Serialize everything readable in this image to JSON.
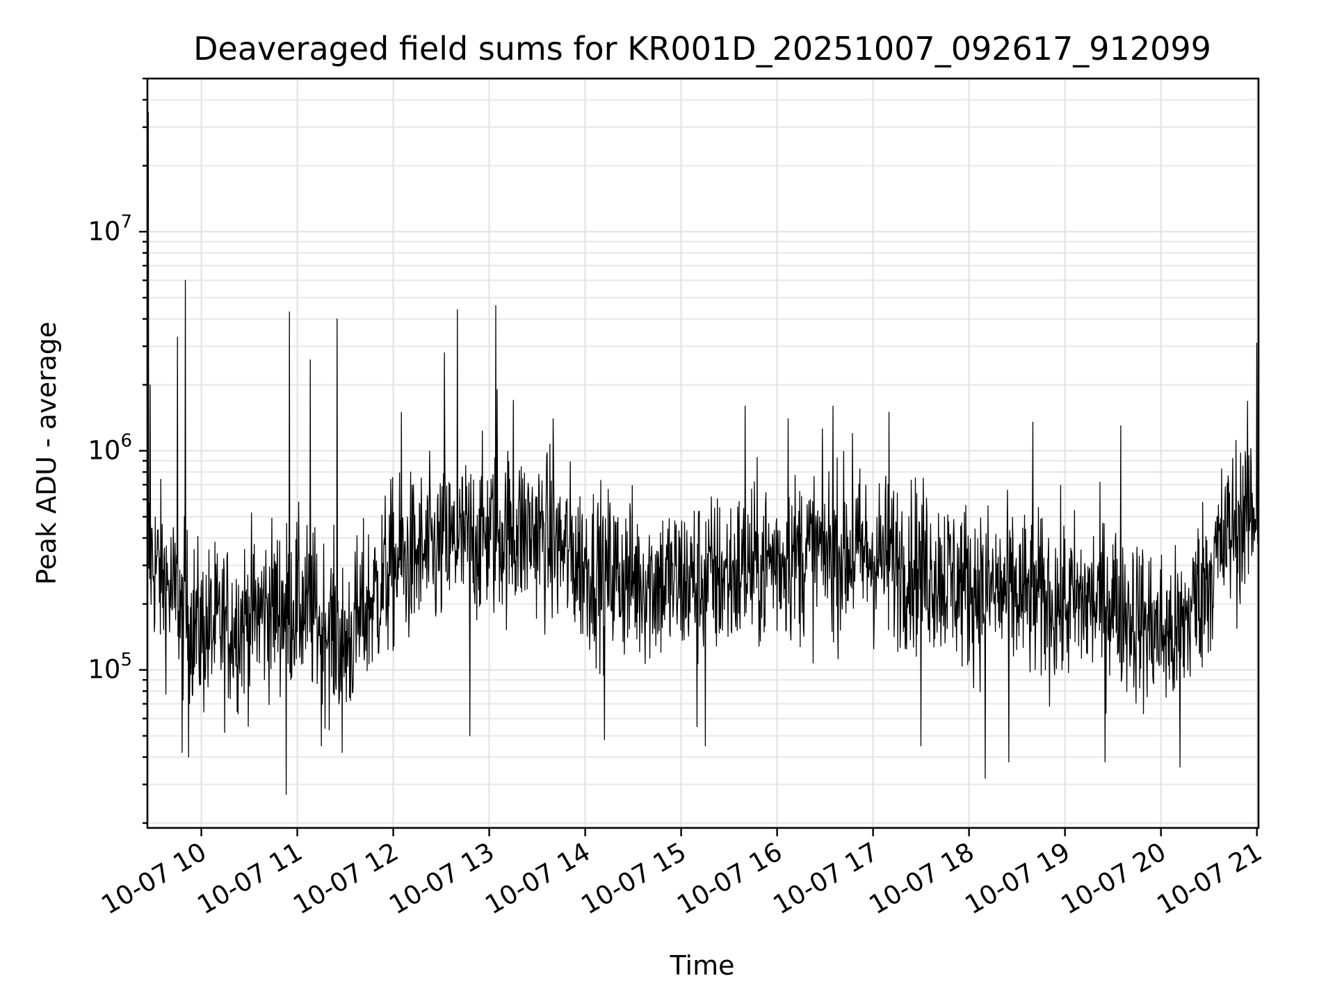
{
  "chart_data": {
    "type": "line",
    "title": "Deaveraged field sums for KR001D_20251007_092617_912099",
    "xlabel": "Time",
    "ylabel": "Peak ADU - average",
    "x_type": "datetime",
    "xlim": [
      "2025-10-07T09:26:17",
      "2025-10-07T21:01:00"
    ],
    "x_ticks": [
      {
        "value": "2025-10-07T10:00",
        "label": "10-07 10"
      },
      {
        "value": "2025-10-07T11:00",
        "label": "10-07 11"
      },
      {
        "value": "2025-10-07T12:00",
        "label": "10-07 12"
      },
      {
        "value": "2025-10-07T13:00",
        "label": "10-07 13"
      },
      {
        "value": "2025-10-07T14:00",
        "label": "10-07 14"
      },
      {
        "value": "2025-10-07T15:00",
        "label": "10-07 15"
      },
      {
        "value": "2025-10-07T16:00",
        "label": "10-07 16"
      },
      {
        "value": "2025-10-07T17:00",
        "label": "10-07 17"
      },
      {
        "value": "2025-10-07T18:00",
        "label": "10-07 18"
      },
      {
        "value": "2025-10-07T19:00",
        "label": "10-07 19"
      },
      {
        "value": "2025-10-07T20:00",
        "label": "10-07 20"
      },
      {
        "value": "2025-10-07T21:00",
        "label": "10-07 21"
      }
    ],
    "y_scale": "log",
    "ylim": [
      19000,
      50000000
    ],
    "y_ticks": [
      {
        "value": 100000,
        "base": "10",
        "exp": "5"
      },
      {
        "value": 1000000,
        "base": "10",
        "exp": "6"
      },
      {
        "value": 10000000,
        "base": "10",
        "exp": "7"
      }
    ],
    "grid": true,
    "legend": "none",
    "line_color": "#000000",
    "trend": [
      [
        "09:26",
        350000
      ],
      [
        "09:45",
        200000
      ],
      [
        "10:00",
        150000
      ],
      [
        "10:20",
        160000
      ],
      [
        "10:40",
        190000
      ],
      [
        "11:00",
        200000
      ],
      [
        "11:15",
        170000
      ],
      [
        "11:30",
        130000
      ],
      [
        "11:45",
        200000
      ],
      [
        "12:00",
        300000
      ],
      [
        "12:30",
        350000
      ],
      [
        "13:00",
        420000
      ],
      [
        "13:30",
        430000
      ],
      [
        "14:00",
        300000
      ],
      [
        "14:30",
        260000
      ],
      [
        "15:00",
        250000
      ],
      [
        "15:30",
        270000
      ],
      [
        "16:00",
        320000
      ],
      [
        "16:30",
        350000
      ],
      [
        "17:00",
        330000
      ],
      [
        "17:30",
        300000
      ],
      [
        "18:00",
        240000
      ],
      [
        "18:30",
        220000
      ],
      [
        "19:00",
        200000
      ],
      [
        "19:30",
        210000
      ],
      [
        "19:50",
        160000
      ],
      [
        "20:10",
        140000
      ],
      [
        "20:30",
        280000
      ],
      [
        "20:45",
        450000
      ],
      [
        "21:00",
        550000
      ]
    ],
    "spikes": [
      [
        "09:27",
        35000000
      ],
      [
        "09:28",
        2000000
      ],
      [
        "09:45",
        3300000
      ],
      [
        "09:48",
        42000
      ],
      [
        "09:50",
        6000000
      ],
      [
        "09:52",
        40000
      ],
      [
        "10:53",
        27000
      ],
      [
        "10:55",
        4300000
      ],
      [
        "11:08",
        2600000
      ],
      [
        "11:15",
        45000
      ],
      [
        "11:25",
        4000000
      ],
      [
        "11:28",
        42000
      ],
      [
        "12:05",
        1500000
      ],
      [
        "12:32",
        2800000
      ],
      [
        "12:40",
        4400000
      ],
      [
        "12:48",
        50000
      ],
      [
        "13:04",
        4600000
      ],
      [
        "13:05",
        3000000
      ],
      [
        "13:05",
        1900000
      ],
      [
        "13:15",
        1700000
      ],
      [
        "13:40",
        1400000
      ],
      [
        "14:12",
        48000
      ],
      [
        "15:10",
        55000
      ],
      [
        "15:15",
        45000
      ],
      [
        "15:40",
        1600000
      ],
      [
        "16:07",
        1400000
      ],
      [
        "16:35",
        1600000
      ],
      [
        "16:47",
        1200000
      ],
      [
        "17:10",
        1500000
      ],
      [
        "17:30",
        45000
      ],
      [
        "18:10",
        32000
      ],
      [
        "18:25",
        38000
      ],
      [
        "18:40",
        1350000
      ],
      [
        "19:25",
        38000
      ],
      [
        "19:35",
        1300000
      ],
      [
        "20:12",
        36000
      ],
      [
        "21:00",
        3100000
      ],
      [
        "20:55",
        950000
      ]
    ]
  }
}
